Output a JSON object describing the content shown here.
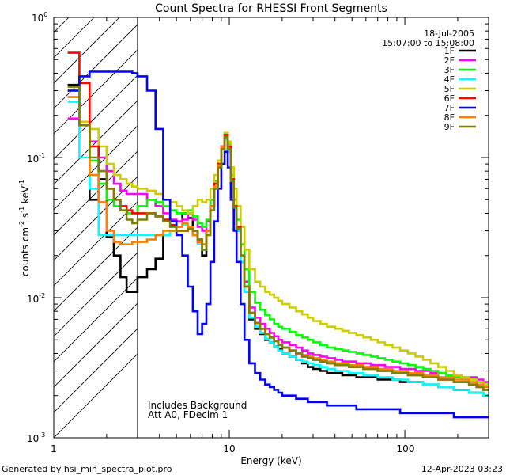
{
  "chart_data": {
    "type": "line",
    "title": "Count Spectra for RHESSI Front Segments",
    "date": "18-Jul-2005",
    "time_range": "15:07:00 to 15:08:00",
    "xlabel": "Energy (keV)",
    "ylabel_base": "counts cm",
    "ylabel_exp1": "-2",
    "ylabel_mid": " s",
    "ylabel_exp2": "-1",
    "ylabel_tail": " keV",
    "ylabel_exp3": "-1",
    "xscale": "log",
    "yscale": "log",
    "xlim": [
      1,
      300
    ],
    "ylim": [
      0.001,
      1
    ],
    "x_tick_labels": [
      {
        "value": 1,
        "label": "1"
      },
      {
        "value": 10,
        "label": "10"
      },
      {
        "value": 100,
        "label": "100"
      }
    ],
    "y_tick_labels": [
      {
        "value": 1,
        "base": "10",
        "exp": "0"
      },
      {
        "value": 0.1,
        "base": "10",
        "exp": "-1"
      },
      {
        "value": 0.01,
        "base": "10",
        "exp": "-2"
      },
      {
        "value": 0.001,
        "base": "10",
        "exp": "-3"
      }
    ],
    "hatched_region": [
      1,
      3
    ],
    "annotation_lines": [
      "Includes Background",
      "Att A0, FDecim 1"
    ],
    "footer_left": "Generated by hsi_min_spectra_plot.pro",
    "footer_right": "12-Apr-2023 03:23",
    "legend_position": "top-right",
    "bin_edges": [
      1.2,
      1.4,
      1.6,
      1.8,
      2.0,
      2.2,
      2.4,
      2.6,
      2.8,
      3.0,
      3.4,
      3.8,
      4.2,
      4.6,
      5.0,
      5.4,
      5.8,
      6.2,
      6.6,
      7.0,
      7.4,
      7.8,
      8.2,
      8.6,
      9.0,
      9.4,
      9.8,
      10.2,
      10.6,
      11.0,
      11.6,
      12.2,
      13.0,
      14.0,
      15.0,
      16.0,
      17.0,
      18.0,
      19.0,
      20.0,
      22.0,
      24.0,
      26.0,
      28.0,
      30.0,
      33.0,
      36.0,
      40.0,
      44.0,
      48.0,
      53.0,
      58.0,
      64.0,
      70.0,
      77.0,
      85.0,
      94.0,
      104.0,
      115.0,
      127.0,
      140.0,
      155.0,
      172.0,
      190.0,
      210.0,
      232.0,
      256.0,
      280.0,
      300.0
    ],
    "series": [
      {
        "name": "1F",
        "color": "#000000",
        "values": [
          0.33,
          0.17,
          0.05,
          0.07,
          0.027,
          0.02,
          0.014,
          0.011,
          0.011,
          0.014,
          0.016,
          0.019,
          0.028,
          0.03,
          0.035,
          0.04,
          0.037,
          0.03,
          0.026,
          0.02,
          0.03,
          0.045,
          0.06,
          0.085,
          0.12,
          0.14,
          0.11,
          0.065,
          0.042,
          0.03,
          0.018,
          0.011,
          0.007,
          0.006,
          0.0055,
          0.005,
          0.0048,
          0.0045,
          0.0043,
          0.004,
          0.0038,
          0.0036,
          0.0034,
          0.0032,
          0.0031,
          0.003,
          0.0029,
          0.0029,
          0.0028,
          0.0028,
          0.0027,
          0.0027,
          0.0027,
          0.0026,
          0.0026,
          0.0026,
          0.0025,
          0.0025,
          0.0025,
          0.0024,
          0.0024,
          0.0023,
          0.0023,
          0.0022,
          0.0022,
          0.0021,
          0.0021,
          0.002
        ]
      },
      {
        "name": "2F",
        "color": "#ff00ff",
        "values": [
          0.19,
          0.17,
          0.13,
          0.1,
          0.08,
          0.065,
          0.058,
          0.055,
          0.055,
          0.055,
          0.05,
          0.045,
          0.04,
          0.036,
          0.035,
          0.036,
          0.04,
          0.036,
          0.032,
          0.03,
          0.035,
          0.05,
          0.065,
          0.09,
          0.12,
          0.145,
          0.12,
          0.07,
          0.045,
          0.032,
          0.02,
          0.013,
          0.0085,
          0.0072,
          0.0065,
          0.006,
          0.0056,
          0.0053,
          0.005,
          0.0048,
          0.0046,
          0.0044,
          0.0042,
          0.004,
          0.0039,
          0.0038,
          0.0037,
          0.0036,
          0.0035,
          0.0035,
          0.0034,
          0.0034,
          0.0033,
          0.0033,
          0.0032,
          0.0032,
          0.0031,
          0.0031,
          0.003,
          0.003,
          0.0029,
          0.0029,
          0.0028,
          0.0028,
          0.0027,
          0.0027,
          0.0026,
          0.0025
        ]
      },
      {
        "name": "3F",
        "color": "#00ff00",
        "values": [
          0.27,
          0.17,
          0.095,
          0.065,
          0.05,
          0.045,
          0.042,
          0.04,
          0.04,
          0.045,
          0.05,
          0.048,
          0.045,
          0.042,
          0.04,
          0.04,
          0.042,
          0.038,
          0.034,
          0.032,
          0.036,
          0.05,
          0.068,
          0.09,
          0.12,
          0.15,
          0.125,
          0.075,
          0.05,
          0.036,
          0.024,
          0.016,
          0.011,
          0.0092,
          0.0082,
          0.0075,
          0.007,
          0.0065,
          0.0062,
          0.006,
          0.0057,
          0.0054,
          0.0052,
          0.005,
          0.0048,
          0.0046,
          0.0044,
          0.0043,
          0.0042,
          0.0041,
          0.004,
          0.0039,
          0.0038,
          0.0037,
          0.0036,
          0.0035,
          0.0034,
          0.0033,
          0.0032,
          0.0031,
          0.003,
          0.0029,
          0.0028,
          0.0027,
          0.0026,
          0.0026,
          0.0025,
          0.0024
        ]
      },
      {
        "name": "4F",
        "color": "#00ffff",
        "values": [
          0.25,
          0.1,
          0.06,
          0.028,
          0.028,
          0.028,
          0.028,
          0.028,
          0.028,
          0.028,
          0.028,
          0.028,
          0.028,
          0.03,
          0.032,
          0.033,
          0.032,
          0.028,
          0.024,
          0.022,
          0.028,
          0.042,
          0.06,
          0.085,
          0.115,
          0.135,
          0.11,
          0.065,
          0.042,
          0.03,
          0.018,
          0.011,
          0.0072,
          0.0062,
          0.0056,
          0.0051,
          0.0048,
          0.0045,
          0.0042,
          0.004,
          0.0038,
          0.0036,
          0.0035,
          0.0034,
          0.0033,
          0.0032,
          0.0031,
          0.003,
          0.003,
          0.0029,
          0.0029,
          0.0028,
          0.0028,
          0.0027,
          0.0027,
          0.0026,
          0.0026,
          0.0025,
          0.0025,
          0.0024,
          0.0024,
          0.0023,
          0.0023,
          0.0022,
          0.0022,
          0.0021,
          0.0021,
          0.002
        ]
      },
      {
        "name": "5F",
        "color": "#cccc00",
        "values": [
          0.3,
          0.18,
          0.16,
          0.12,
          0.09,
          0.075,
          0.07,
          0.065,
          0.062,
          0.06,
          0.058,
          0.055,
          0.05,
          0.048,
          0.045,
          0.042,
          0.04,
          0.045,
          0.05,
          0.048,
          0.05,
          0.06,
          0.075,
          0.095,
          0.12,
          0.15,
          0.13,
          0.085,
          0.06,
          0.045,
          0.032,
          0.022,
          0.016,
          0.013,
          0.012,
          0.011,
          0.0105,
          0.01,
          0.0095,
          0.009,
          0.0085,
          0.008,
          0.0076,
          0.0072,
          0.0068,
          0.0065,
          0.0062,
          0.006,
          0.0058,
          0.0056,
          0.0054,
          0.0052,
          0.005,
          0.0048,
          0.0046,
          0.0044,
          0.0042,
          0.004,
          0.0038,
          0.0036,
          0.0034,
          0.0032,
          0.003,
          0.0028,
          0.0027,
          0.0026,
          0.0025,
          0.0024
        ]
      },
      {
        "name": "6F",
        "color": "#ff0000",
        "values": [
          0.56,
          0.34,
          0.12,
          0.08,
          0.06,
          0.05,
          0.045,
          0.042,
          0.04,
          0.04,
          0.04,
          0.038,
          0.036,
          0.033,
          0.03,
          0.03,
          0.031,
          0.028,
          0.025,
          0.024,
          0.03,
          0.045,
          0.065,
          0.09,
          0.12,
          0.145,
          0.12,
          0.07,
          0.045,
          0.032,
          0.02,
          0.012,
          0.0078,
          0.0066,
          0.006,
          0.0055,
          0.0052,
          0.0049,
          0.0046,
          0.0044,
          0.0042,
          0.004,
          0.0038,
          0.0037,
          0.0036,
          0.0035,
          0.0034,
          0.0033,
          0.0033,
          0.0032,
          0.0032,
          0.0031,
          0.0031,
          0.003,
          0.003,
          0.0029,
          0.0029,
          0.0028,
          0.0028,
          0.0027,
          0.0027,
          0.0026,
          0.0026,
          0.0025,
          0.0025,
          0.0024,
          0.0023,
          0.0022
        ]
      },
      {
        "name": "7F",
        "color": "#0000ff",
        "values": [
          0.3,
          0.38,
          0.41,
          0.41,
          0.41,
          0.41,
          0.41,
          0.41,
          0.4,
          0.38,
          0.3,
          0.16,
          0.05,
          0.035,
          0.028,
          0.02,
          0.012,
          0.008,
          0.0055,
          0.0065,
          0.009,
          0.018,
          0.035,
          0.06,
          0.09,
          0.11,
          0.085,
          0.05,
          0.03,
          0.018,
          0.009,
          0.005,
          0.0034,
          0.0029,
          0.0026,
          0.0024,
          0.0023,
          0.0022,
          0.0021,
          0.002,
          0.002,
          0.0019,
          0.0019,
          0.0018,
          0.0018,
          0.0018,
          0.0017,
          0.0017,
          0.0017,
          0.0017,
          0.0016,
          0.0016,
          0.0016,
          0.0016,
          0.0016,
          0.0016,
          0.0015,
          0.0015,
          0.0015,
          0.0015,
          0.0015,
          0.0015,
          0.0015,
          0.0014,
          0.0014,
          0.0014,
          0.0014,
          0.0014
        ]
      },
      {
        "name": "8F",
        "color": "#ff8000",
        "values": [
          0.27,
          0.17,
          0.075,
          0.048,
          0.03,
          0.025,
          0.024,
          0.024,
          0.025,
          0.025,
          0.026,
          0.028,
          0.03,
          0.03,
          0.032,
          0.034,
          0.032,
          0.028,
          0.025,
          0.024,
          0.03,
          0.045,
          0.062,
          0.088,
          0.118,
          0.14,
          0.115,
          0.068,
          0.044,
          0.031,
          0.02,
          0.012,
          0.0078,
          0.0066,
          0.006,
          0.0055,
          0.0052,
          0.0049,
          0.0046,
          0.0044,
          0.0042,
          0.004,
          0.0039,
          0.0038,
          0.0037,
          0.0036,
          0.0035,
          0.0034,
          0.0034,
          0.0033,
          0.0033,
          0.0032,
          0.0032,
          0.0031,
          0.0031,
          0.003,
          0.003,
          0.0029,
          0.0029,
          0.0028,
          0.0028,
          0.0027,
          0.0027,
          0.0026,
          0.0026,
          0.0025,
          0.0024,
          0.0023
        ]
      },
      {
        "name": "9F",
        "color": "#808000",
        "values": [
          0.32,
          0.17,
          0.1,
          0.08,
          0.06,
          0.05,
          0.042,
          0.036,
          0.034,
          0.036,
          0.04,
          0.038,
          0.035,
          0.032,
          0.03,
          0.03,
          0.031,
          0.03,
          0.026,
          0.022,
          0.028,
          0.042,
          0.06,
          0.085,
          0.115,
          0.14,
          0.115,
          0.068,
          0.044,
          0.031,
          0.02,
          0.012,
          0.0078,
          0.0066,
          0.006,
          0.0055,
          0.0052,
          0.0049,
          0.0046,
          0.0044,
          0.0042,
          0.004,
          0.0038,
          0.0037,
          0.0036,
          0.0035,
          0.0034,
          0.0033,
          0.0033,
          0.0032,
          0.0032,
          0.0031,
          0.0031,
          0.003,
          0.003,
          0.0029,
          0.0029,
          0.0028,
          0.0028,
          0.0027,
          0.0027,
          0.0026,
          0.0026,
          0.0025,
          0.0025,
          0.0024,
          0.0023,
          0.0022
        ]
      }
    ]
  }
}
